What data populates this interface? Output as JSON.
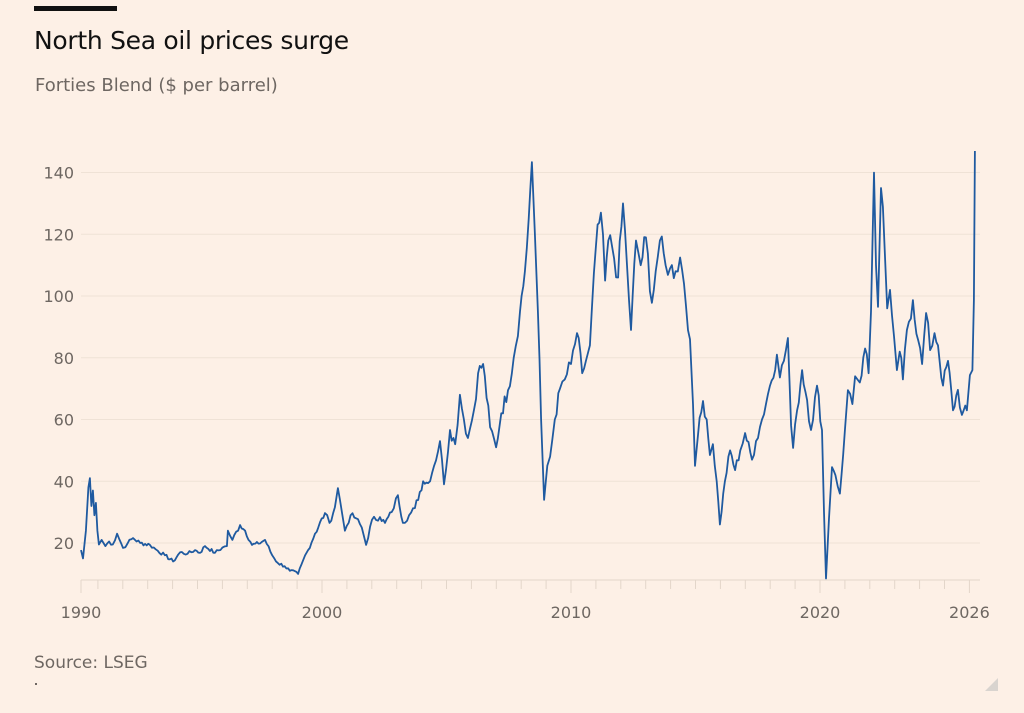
{
  "header": {
    "title": "North Sea oil prices surge",
    "subtitle": "Forties Blend ($ per barrel)"
  },
  "footer": {
    "source": "Source: LSEG"
  },
  "chart_data": {
    "type": "line",
    "title": "North Sea oil prices surge",
    "subtitle": "Forties Blend ($ per barrel)",
    "xlabel": "",
    "ylabel": "$ per barrel",
    "xlim": [
      1990.3,
      2026.3
    ],
    "ylim": [
      8,
      150
    ],
    "grid": true,
    "legend": "none",
    "y_ticks": [
      20,
      40,
      60,
      80,
      100,
      120,
      140
    ],
    "x_tick_labels": [
      {
        "year": 1990,
        "label": "1990"
      },
      {
        "year": 2000,
        "label": "2000"
      },
      {
        "year": 2010,
        "label": "2010"
      },
      {
        "year": 2020,
        "label": "2020"
      },
      {
        "year": 2026,
        "label": "2026"
      }
    ],
    "line_color": "#1f5aa0",
    "series": [
      {
        "name": "Forties Blend",
        "points": [
          [
            1990.32,
            17.7
          ],
          [
            1990.4,
            15.0
          ],
          [
            1990.52,
            24.0
          ],
          [
            1990.62,
            38.0
          ],
          [
            1990.68,
            41.0
          ],
          [
            1990.74,
            32.0
          ],
          [
            1990.8,
            37.0
          ],
          [
            1990.86,
            29.0
          ],
          [
            1990.92,
            33.0
          ],
          [
            1990.98,
            24.0
          ],
          [
            1991.04,
            19.5
          ],
          [
            1991.15,
            21.0
          ],
          [
            1991.3,
            19.0
          ],
          [
            1991.45,
            20.5
          ],
          [
            1991.6,
            19.5
          ],
          [
            1991.77,
            23.0
          ],
          [
            1992.01,
            18.4
          ],
          [
            1992.2,
            20.0
          ],
          [
            1992.41,
            21.6
          ],
          [
            1992.7,
            20.0
          ],
          [
            1993.09,
            19.4
          ],
          [
            1993.4,
            17.5
          ],
          [
            1993.69,
            16.0
          ],
          [
            1994.02,
            14.0
          ],
          [
            1994.3,
            17.0
          ],
          [
            1994.6,
            16.5
          ],
          [
            1994.9,
            17.7
          ],
          [
            1995.1,
            16.8
          ],
          [
            1995.3,
            19.0
          ],
          [
            1995.7,
            16.8
          ],
          [
            1996.0,
            18.5
          ],
          [
            1996.18,
            19.0
          ],
          [
            1996.22,
            24.0
          ],
          [
            1996.4,
            21.0
          ],
          [
            1996.71,
            25.8
          ],
          [
            1996.91,
            24.0
          ],
          [
            1997.19,
            19.4
          ],
          [
            1997.45,
            19.8
          ],
          [
            1997.71,
            21.0
          ],
          [
            1998.0,
            16.0
          ],
          [
            1998.23,
            13.5
          ],
          [
            1998.5,
            12.5
          ],
          [
            1998.71,
            11.0
          ],
          [
            1999.04,
            10.0
          ],
          [
            1999.32,
            16.0
          ],
          [
            1999.44,
            17.7
          ],
          [
            1999.72,
            23.0
          ],
          [
            2000.12,
            29.7
          ],
          [
            2000.3,
            26.5
          ],
          [
            2000.52,
            31.6
          ],
          [
            2000.64,
            37.8
          ],
          [
            2000.8,
            30.0
          ],
          [
            2000.92,
            24.0
          ],
          [
            2001.15,
            29.0
          ],
          [
            2001.37,
            28.0
          ],
          [
            2001.6,
            25.0
          ],
          [
            2001.77,
            19.4
          ],
          [
            2002.01,
            27.5
          ],
          [
            2002.33,
            28.4
          ],
          [
            2002.53,
            26.5
          ],
          [
            2002.8,
            30.0
          ],
          [
            2003.05,
            35.5
          ],
          [
            2003.25,
            26.5
          ],
          [
            2003.5,
            29.0
          ],
          [
            2003.73,
            31.3
          ],
          [
            2004.06,
            40.0
          ],
          [
            2004.26,
            39.4
          ],
          [
            2004.5,
            45.0
          ],
          [
            2004.74,
            53.0
          ],
          [
            2004.9,
            39.0
          ],
          [
            2005.14,
            56.6
          ],
          [
            2005.35,
            52.0
          ],
          [
            2005.54,
            68.0
          ],
          [
            2005.7,
            60.0
          ],
          [
            2005.86,
            54.0
          ],
          [
            2006.1,
            63.0
          ],
          [
            2006.27,
            75.0
          ],
          [
            2006.47,
            78.0
          ],
          [
            2006.75,
            57.5
          ],
          [
            2006.99,
            51.0
          ],
          [
            2007.2,
            62.0
          ],
          [
            2007.47,
            69.5
          ],
          [
            2007.7,
            80.0
          ],
          [
            2007.95,
            95.0
          ],
          [
            2008.15,
            108.0
          ],
          [
            2008.3,
            125.0
          ],
          [
            2008.43,
            143.4
          ],
          [
            2008.55,
            120.0
          ],
          [
            2008.67,
            95.0
          ],
          [
            2008.8,
            60.0
          ],
          [
            2008.92,
            34.0
          ],
          [
            2009.05,
            45.0
          ],
          [
            2009.16,
            48.0
          ],
          [
            2009.35,
            60.0
          ],
          [
            2009.56,
            70.0
          ],
          [
            2009.75,
            73.0
          ],
          [
            2010.0,
            78.0
          ],
          [
            2010.24,
            88.0
          ],
          [
            2010.45,
            75.0
          ],
          [
            2010.6,
            79.0
          ],
          [
            2010.76,
            84.0
          ],
          [
            2011.0,
            116.0
          ],
          [
            2011.2,
            127.0
          ],
          [
            2011.37,
            105.0
          ],
          [
            2011.5,
            118.0
          ],
          [
            2011.65,
            116.0
          ],
          [
            2011.89,
            106.0
          ],
          [
            2012.09,
            130.0
          ],
          [
            2012.25,
            110.0
          ],
          [
            2012.41,
            89.0
          ],
          [
            2012.61,
            118.0
          ],
          [
            2012.8,
            110.0
          ],
          [
            2013.01,
            119.0
          ],
          [
            2013.25,
            97.8
          ],
          [
            2013.4,
            108.0
          ],
          [
            2013.57,
            118.0
          ],
          [
            2013.8,
            110.0
          ],
          [
            2013.98,
            109.0
          ],
          [
            2014.2,
            108.0
          ],
          [
            2014.38,
            112.5
          ],
          [
            2014.54,
            104.0
          ],
          [
            2014.78,
            86.0
          ],
          [
            2014.9,
            65.0
          ],
          [
            2014.98,
            45.0
          ],
          [
            2015.1,
            55.0
          ],
          [
            2015.3,
            66.0
          ],
          [
            2015.45,
            60.0
          ],
          [
            2015.58,
            48.5
          ],
          [
            2015.7,
            52.0
          ],
          [
            2015.85,
            40.0
          ],
          [
            2015.98,
            26.0
          ],
          [
            2016.18,
            40.0
          ],
          [
            2016.39,
            50.0
          ],
          [
            2016.59,
            43.6
          ],
          [
            2016.8,
            50.0
          ],
          [
            2016.99,
            55.6
          ],
          [
            2017.27,
            47.0
          ],
          [
            2017.43,
            53.0
          ],
          [
            2017.67,
            60.0
          ],
          [
            2017.99,
            71.0
          ],
          [
            2018.27,
            81.0
          ],
          [
            2018.39,
            73.6
          ],
          [
            2018.55,
            79.0
          ],
          [
            2018.71,
            86.4
          ],
          [
            2018.84,
            58.0
          ],
          [
            2018.92,
            50.8
          ],
          [
            2019.08,
            63.0
          ],
          [
            2019.28,
            76.0
          ],
          [
            2019.48,
            66.3
          ],
          [
            2019.64,
            56.6
          ],
          [
            2019.88,
            71.0
          ],
          [
            2020.08,
            56.6
          ],
          [
            2020.16,
            30.0
          ],
          [
            2020.24,
            8.5
          ],
          [
            2020.36,
            28.0
          ],
          [
            2020.48,
            44.6
          ],
          [
            2020.62,
            42.0
          ],
          [
            2020.8,
            36.0
          ],
          [
            2021.0,
            56.5
          ],
          [
            2021.12,
            69.5
          ],
          [
            2021.3,
            65.0
          ],
          [
            2021.41,
            74.0
          ],
          [
            2021.6,
            72.0
          ],
          [
            2021.81,
            83.0
          ],
          [
            2021.95,
            75.0
          ],
          [
            2022.05,
            95.0
          ],
          [
            2022.17,
            140.0
          ],
          [
            2022.25,
            110.0
          ],
          [
            2022.33,
            96.5
          ],
          [
            2022.45,
            135.0
          ],
          [
            2022.6,
            115.0
          ],
          [
            2022.7,
            96.0
          ],
          [
            2022.81,
            102.0
          ],
          [
            2022.97,
            87.0
          ],
          [
            2023.09,
            76.0
          ],
          [
            2023.2,
            82.0
          ],
          [
            2023.33,
            73.0
          ],
          [
            2023.49,
            89.0
          ],
          [
            2023.73,
            98.7
          ],
          [
            2023.94,
            85.8
          ],
          [
            2024.1,
            78.0
          ],
          [
            2024.26,
            94.5
          ],
          [
            2024.42,
            82.5
          ],
          [
            2024.6,
            88.0
          ],
          [
            2024.74,
            84.0
          ],
          [
            2024.94,
            71.0
          ],
          [
            2025.14,
            79.0
          ],
          [
            2025.34,
            63.0
          ],
          [
            2025.54,
            69.6
          ],
          [
            2025.7,
            61.5
          ],
          [
            2025.9,
            63.0
          ],
          [
            2026.02,
            74.4
          ],
          [
            2026.12,
            76.0
          ],
          [
            2026.18,
            98.7
          ],
          [
            2026.22,
            147.0
          ]
        ]
      }
    ]
  }
}
